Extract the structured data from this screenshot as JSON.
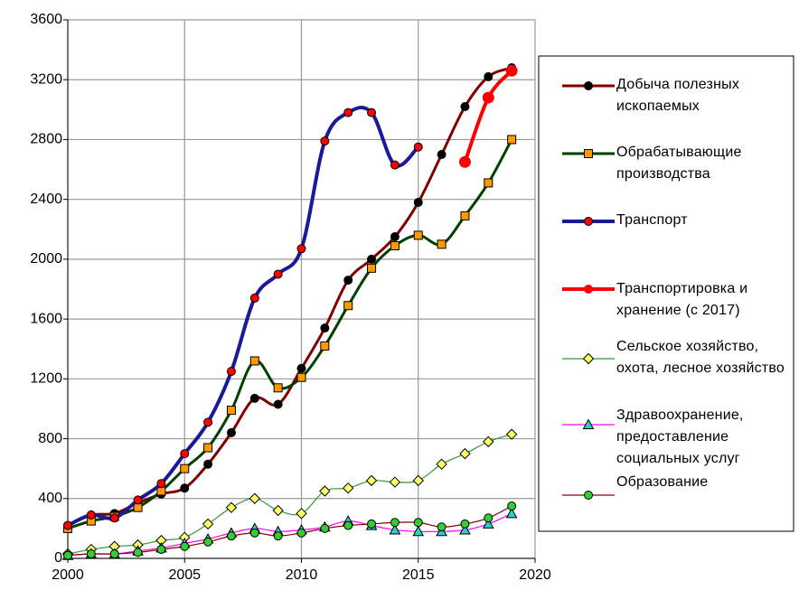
{
  "chart_data": {
    "type": "line",
    "x": [
      2000,
      2001,
      2002,
      2003,
      2004,
      2005,
      2006,
      2007,
      2008,
      2009,
      2010,
      2011,
      2012,
      2013,
      2014,
      2015,
      2016,
      2017,
      2018,
      2019
    ],
    "xlim": [
      2000,
      2020
    ],
    "xticks": [
      2000,
      2005,
      2010,
      2015,
      2020
    ],
    "ylim": [
      0,
      3600
    ],
    "yticks": [
      0,
      400,
      800,
      1200,
      1600,
      2000,
      2400,
      2800,
      3200,
      3600
    ],
    "grid": true,
    "legend": "right",
    "series": [
      {
        "name": "Добыча полезных ископаемых",
        "color": "#800000",
        "marker": "circle",
        "marker_color": "#000000",
        "line_width": 3,
        "values": [
          220,
          290,
          300,
          370,
          430,
          470,
          630,
          840,
          1070,
          1030,
          1270,
          1540,
          1860,
          2000,
          2150,
          2380,
          2700,
          3020,
          3220,
          3280
        ]
      },
      {
        "name": "Обрабатывающие производства",
        "color": "#004000",
        "marker": "square",
        "marker_color": "#ff9900",
        "line_width": 3,
        "values": [
          200,
          250,
          280,
          340,
          450,
          600,
          740,
          990,
          1320,
          1140,
          1210,
          1420,
          1690,
          1940,
          2090,
          2160,
          2100,
          2290,
          2510,
          2800
        ]
      },
      {
        "name": "Транспорт",
        "color": "#1a1a99",
        "marker": "circle",
        "marker_color": "#ff0000",
        "line_width": 4,
        "values": [
          220,
          290,
          270,
          390,
          500,
          700,
          910,
          1250,
          1740,
          1900,
          2070,
          2790,
          2980,
          2980,
          2630,
          2750,
          null,
          null,
          null,
          null
        ]
      },
      {
        "name": "Транспортировка и хранение (с 2017)",
        "color": "#ff0000",
        "marker": "circle",
        "marker_color": "#ff0000",
        "line_width": 4,
        "values": [
          null,
          null,
          null,
          null,
          null,
          null,
          null,
          null,
          null,
          null,
          null,
          null,
          null,
          null,
          null,
          null,
          null,
          2650,
          3080,
          3260
        ]
      },
      {
        "name": "Сельское хозяйство, охота, лесное хозяйство",
        "color": "#339933",
        "marker": "diamond",
        "marker_color": "#ffff66",
        "line_width": 1.2,
        "values": [
          30,
          60,
          80,
          90,
          120,
          140,
          230,
          340,
          400,
          320,
          300,
          450,
          470,
          520,
          510,
          520,
          630,
          700,
          780,
          830
        ]
      },
      {
        "name": "Здравоохранение, предоставление социальных услуг",
        "color": "#ff00ff",
        "marker": "triangle",
        "marker_color": "#33cccc",
        "line_width": 1.2,
        "values": [
          20,
          30,
          30,
          50,
          70,
          100,
          130,
          170,
          200,
          180,
          190,
          210,
          250,
          220,
          190,
          180,
          180,
          190,
          230,
          300
        ]
      },
      {
        "name": "Образование",
        "color": "#800000",
        "marker": "circle",
        "marker_color": "#33cc33",
        "line_width": 1.2,
        "values": [
          20,
          30,
          30,
          40,
          60,
          80,
          110,
          150,
          170,
          150,
          170,
          200,
          220,
          230,
          240,
          240,
          210,
          230,
          270,
          350
        ]
      }
    ]
  }
}
